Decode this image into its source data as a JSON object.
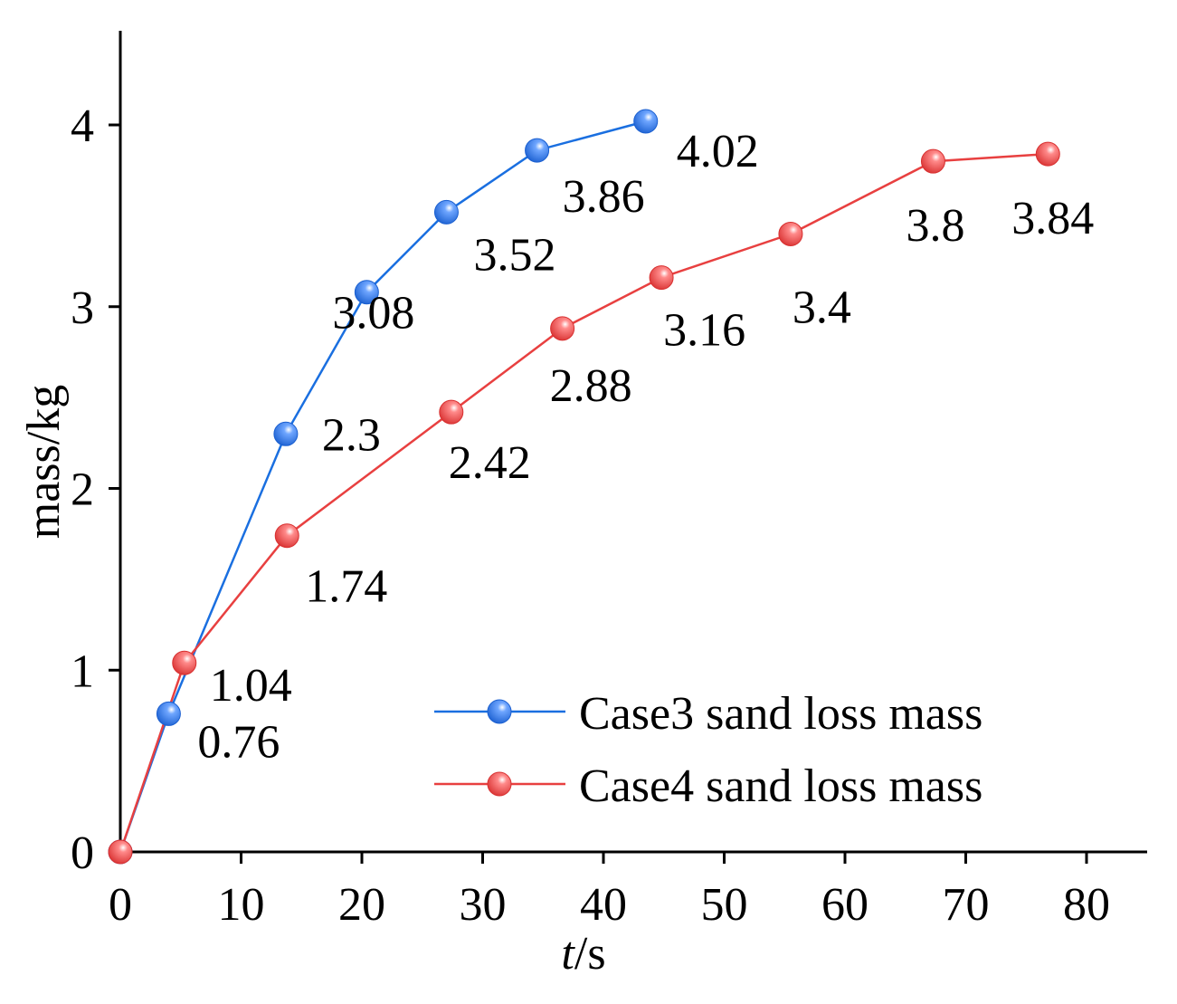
{
  "chart_data": {
    "type": "line",
    "title": "",
    "xlabel": "s",
    "xlabel_var": "t",
    "xlabel_sep": "/",
    "ylabel": "mass/kg",
    "xlim": [
      0,
      85
    ],
    "ylim": [
      0,
      4.5
    ],
    "xticks": [
      0,
      10,
      20,
      30,
      40,
      50,
      60,
      70,
      80
    ],
    "yticks": [
      0,
      1,
      2,
      3,
      4
    ],
    "grid": false,
    "legend_position": "bottom-right",
    "series": [
      {
        "name": "Case3 sand loss mass",
        "color": "#1a6fe0",
        "x": [
          0,
          4,
          13.7,
          20.4,
          27,
          34.5,
          43.5
        ],
        "y": [
          0,
          0.76,
          2.3,
          3.08,
          3.52,
          3.86,
          4.02
        ],
        "labels": [
          "",
          "0.76",
          "2.3",
          "3.08",
          "3.52",
          "3.86",
          "4.02"
        ]
      },
      {
        "name": "Case4 sand loss mass",
        "color": "#e84040",
        "x": [
          0,
          5.3,
          13.8,
          27.4,
          36.6,
          44.8,
          55.5,
          67.3,
          76.8
        ],
        "y": [
          0,
          1.04,
          1.74,
          2.42,
          2.88,
          3.16,
          3.4,
          3.8,
          3.84
        ],
        "labels": [
          "",
          "1.04",
          "1.74",
          "2.42",
          "2.88",
          "3.16",
          "3.4",
          "3.8",
          "3.84"
        ]
      }
    ]
  }
}
